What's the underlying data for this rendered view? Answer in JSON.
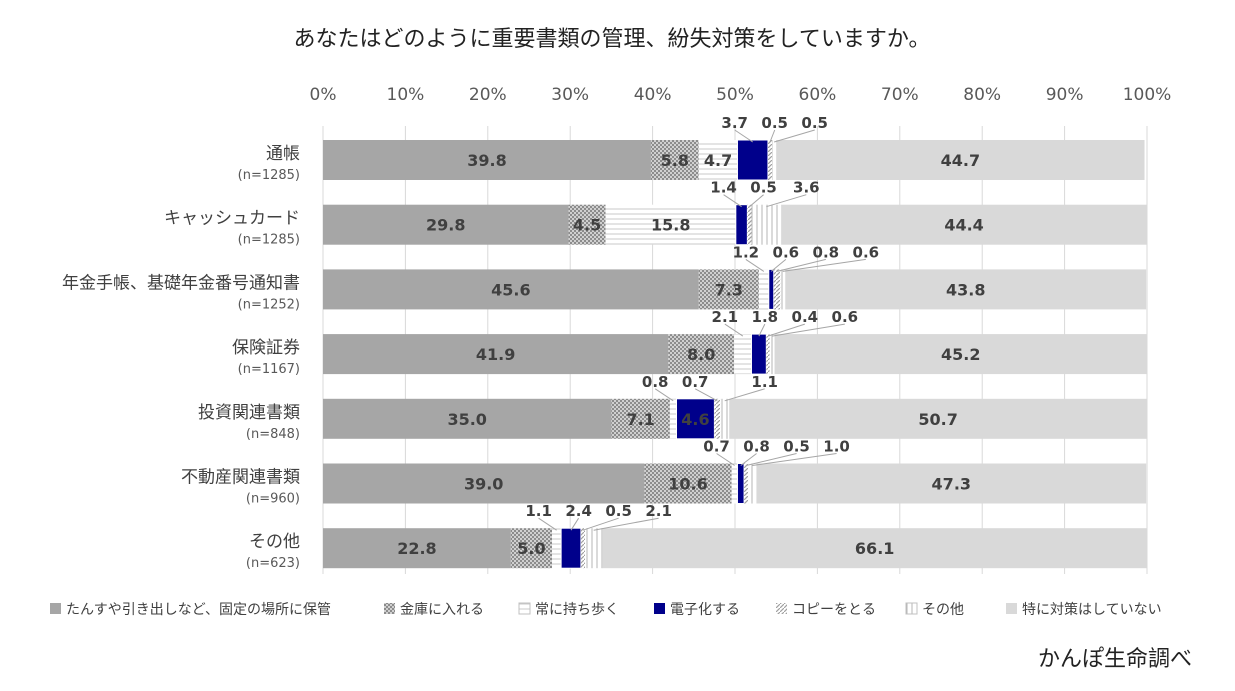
{
  "chart_data": {
    "type": "bar",
    "orientation": "horizontal",
    "stacked": "percent",
    "title": "あなたはどのように重要書類の管理、紛失対策をしていますか。",
    "xlim": [
      0,
      100
    ],
    "xticks": [
      "0%",
      "10%",
      "20%",
      "30%",
      "40%",
      "50%",
      "60%",
      "70%",
      "80%",
      "90%",
      "100%"
    ],
    "categories": [
      {
        "label": "通帳",
        "n": "(n=1285)"
      },
      {
        "label": "キャッシュカード",
        "n": "(n=1285)"
      },
      {
        "label": "年金手帳、基礎年金番号通知書",
        "n": "(n=1252)"
      },
      {
        "label": "保険証券",
        "n": "(n=1167)"
      },
      {
        "label": "投資関連書類",
        "n": "(n=848)"
      },
      {
        "label": "不動産関連書類",
        "n": "(n=960)"
      },
      {
        "label": "その他",
        "n": "(n=623)"
      }
    ],
    "series": [
      {
        "name": "たんすや引き出しなど、固定の場所に保管",
        "color": "#a6a6a6",
        "pattern": "solid",
        "values": [
          39.8,
          29.8,
          45.6,
          41.9,
          35.0,
          39.0,
          22.8
        ],
        "labels": [
          "39.8",
          "29.8",
          "45.6",
          "41.9",
          "35.0",
          "39.0",
          "22.8"
        ]
      },
      {
        "name": "金庫に入れる",
        "color": "#bfbfbf",
        "pattern": "dots",
        "values": [
          5.8,
          4.5,
          7.3,
          8.0,
          7.1,
          10.6,
          5.0
        ],
        "labels": [
          "5.8",
          "4.5",
          "7.3",
          "8.0",
          "7.1",
          "10.6",
          "5.0"
        ]
      },
      {
        "name": "常に持ち歩く",
        "color": "#ffffff",
        "pattern": "hlines",
        "values": [
          4.7,
          15.8,
          1.2,
          2.1,
          0.8,
          0.7,
          1.1
        ],
        "labels": [
          "4.7",
          "15.8",
          "1.2",
          "2.1",
          "0.8",
          "0.7",
          "1.1"
        ]
      },
      {
        "name": "電子化する",
        "color": "#00008b",
        "pattern": "solid",
        "values": [
          3.7,
          1.4,
          0.6,
          1.8,
          4.6,
          0.8,
          2.4
        ],
        "labels": [
          "3.7",
          "1.4",
          "0.6",
          "1.8",
          "4.6",
          "0.8",
          "2.4"
        ]
      },
      {
        "name": "コピーをとる",
        "color": "#d9d9d9",
        "pattern": "diag",
        "values": [
          0.5,
          0.5,
          0.8,
          0.4,
          0.7,
          0.5,
          0.5
        ],
        "labels": [
          "0.5",
          "0.5",
          "0.8",
          "0.4",
          "0.7",
          "0.5",
          "0.5"
        ]
      },
      {
        "name": "その他",
        "color": "#ffffff",
        "pattern": "vlines",
        "values": [
          0.5,
          3.6,
          0.6,
          0.6,
          1.1,
          1.0,
          2.1
        ],
        "labels": [
          "0.5",
          "3.6",
          "0.6",
          "0.6",
          "1.1",
          "1.0",
          "2.1"
        ]
      },
      {
        "name": "特に対策はしていない",
        "color": "#d9d9d9",
        "pattern": "solid",
        "values": [
          44.7,
          44.4,
          43.8,
          45.2,
          50.7,
          47.3,
          66.1
        ],
        "labels": [
          "44.7",
          "44.4",
          "43.8",
          "45.2",
          "50.7",
          "47.3",
          "66.1"
        ]
      }
    ],
    "legend_position": "bottom",
    "source": "かんぽ生命調べ"
  }
}
